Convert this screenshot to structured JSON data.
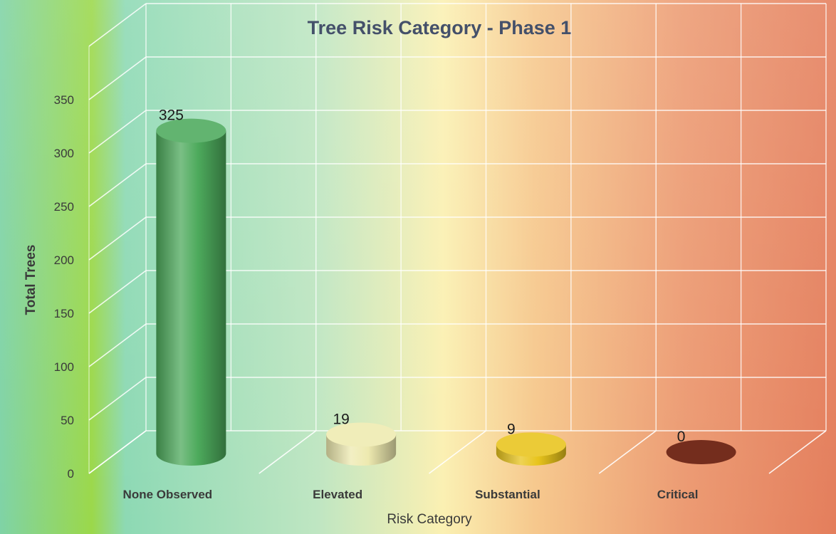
{
  "chart_data": {
    "type": "bar",
    "title": "Tree Risk Category - Phase 1",
    "xlabel": "Risk Category",
    "ylabel": "Total Trees",
    "categories": [
      "None Observed",
      "Elevated",
      "Substantial",
      "Critical"
    ],
    "values": [
      325,
      19,
      9,
      0
    ],
    "data_labels": [
      "325",
      "19",
      "9",
      "0"
    ],
    "yticks": [
      0,
      50,
      100,
      150,
      200,
      250,
      300,
      350
    ],
    "ylim": [
      0,
      350
    ],
    "grid": true,
    "legend": "none",
    "colors": {
      "bars": [
        "#4daa5c",
        "#eeeab0",
        "#e8c41c",
        "#7a2f1f"
      ],
      "title": "#44506a",
      "axis_text": "#3a3a3a",
      "grid": "#ffffff"
    }
  }
}
